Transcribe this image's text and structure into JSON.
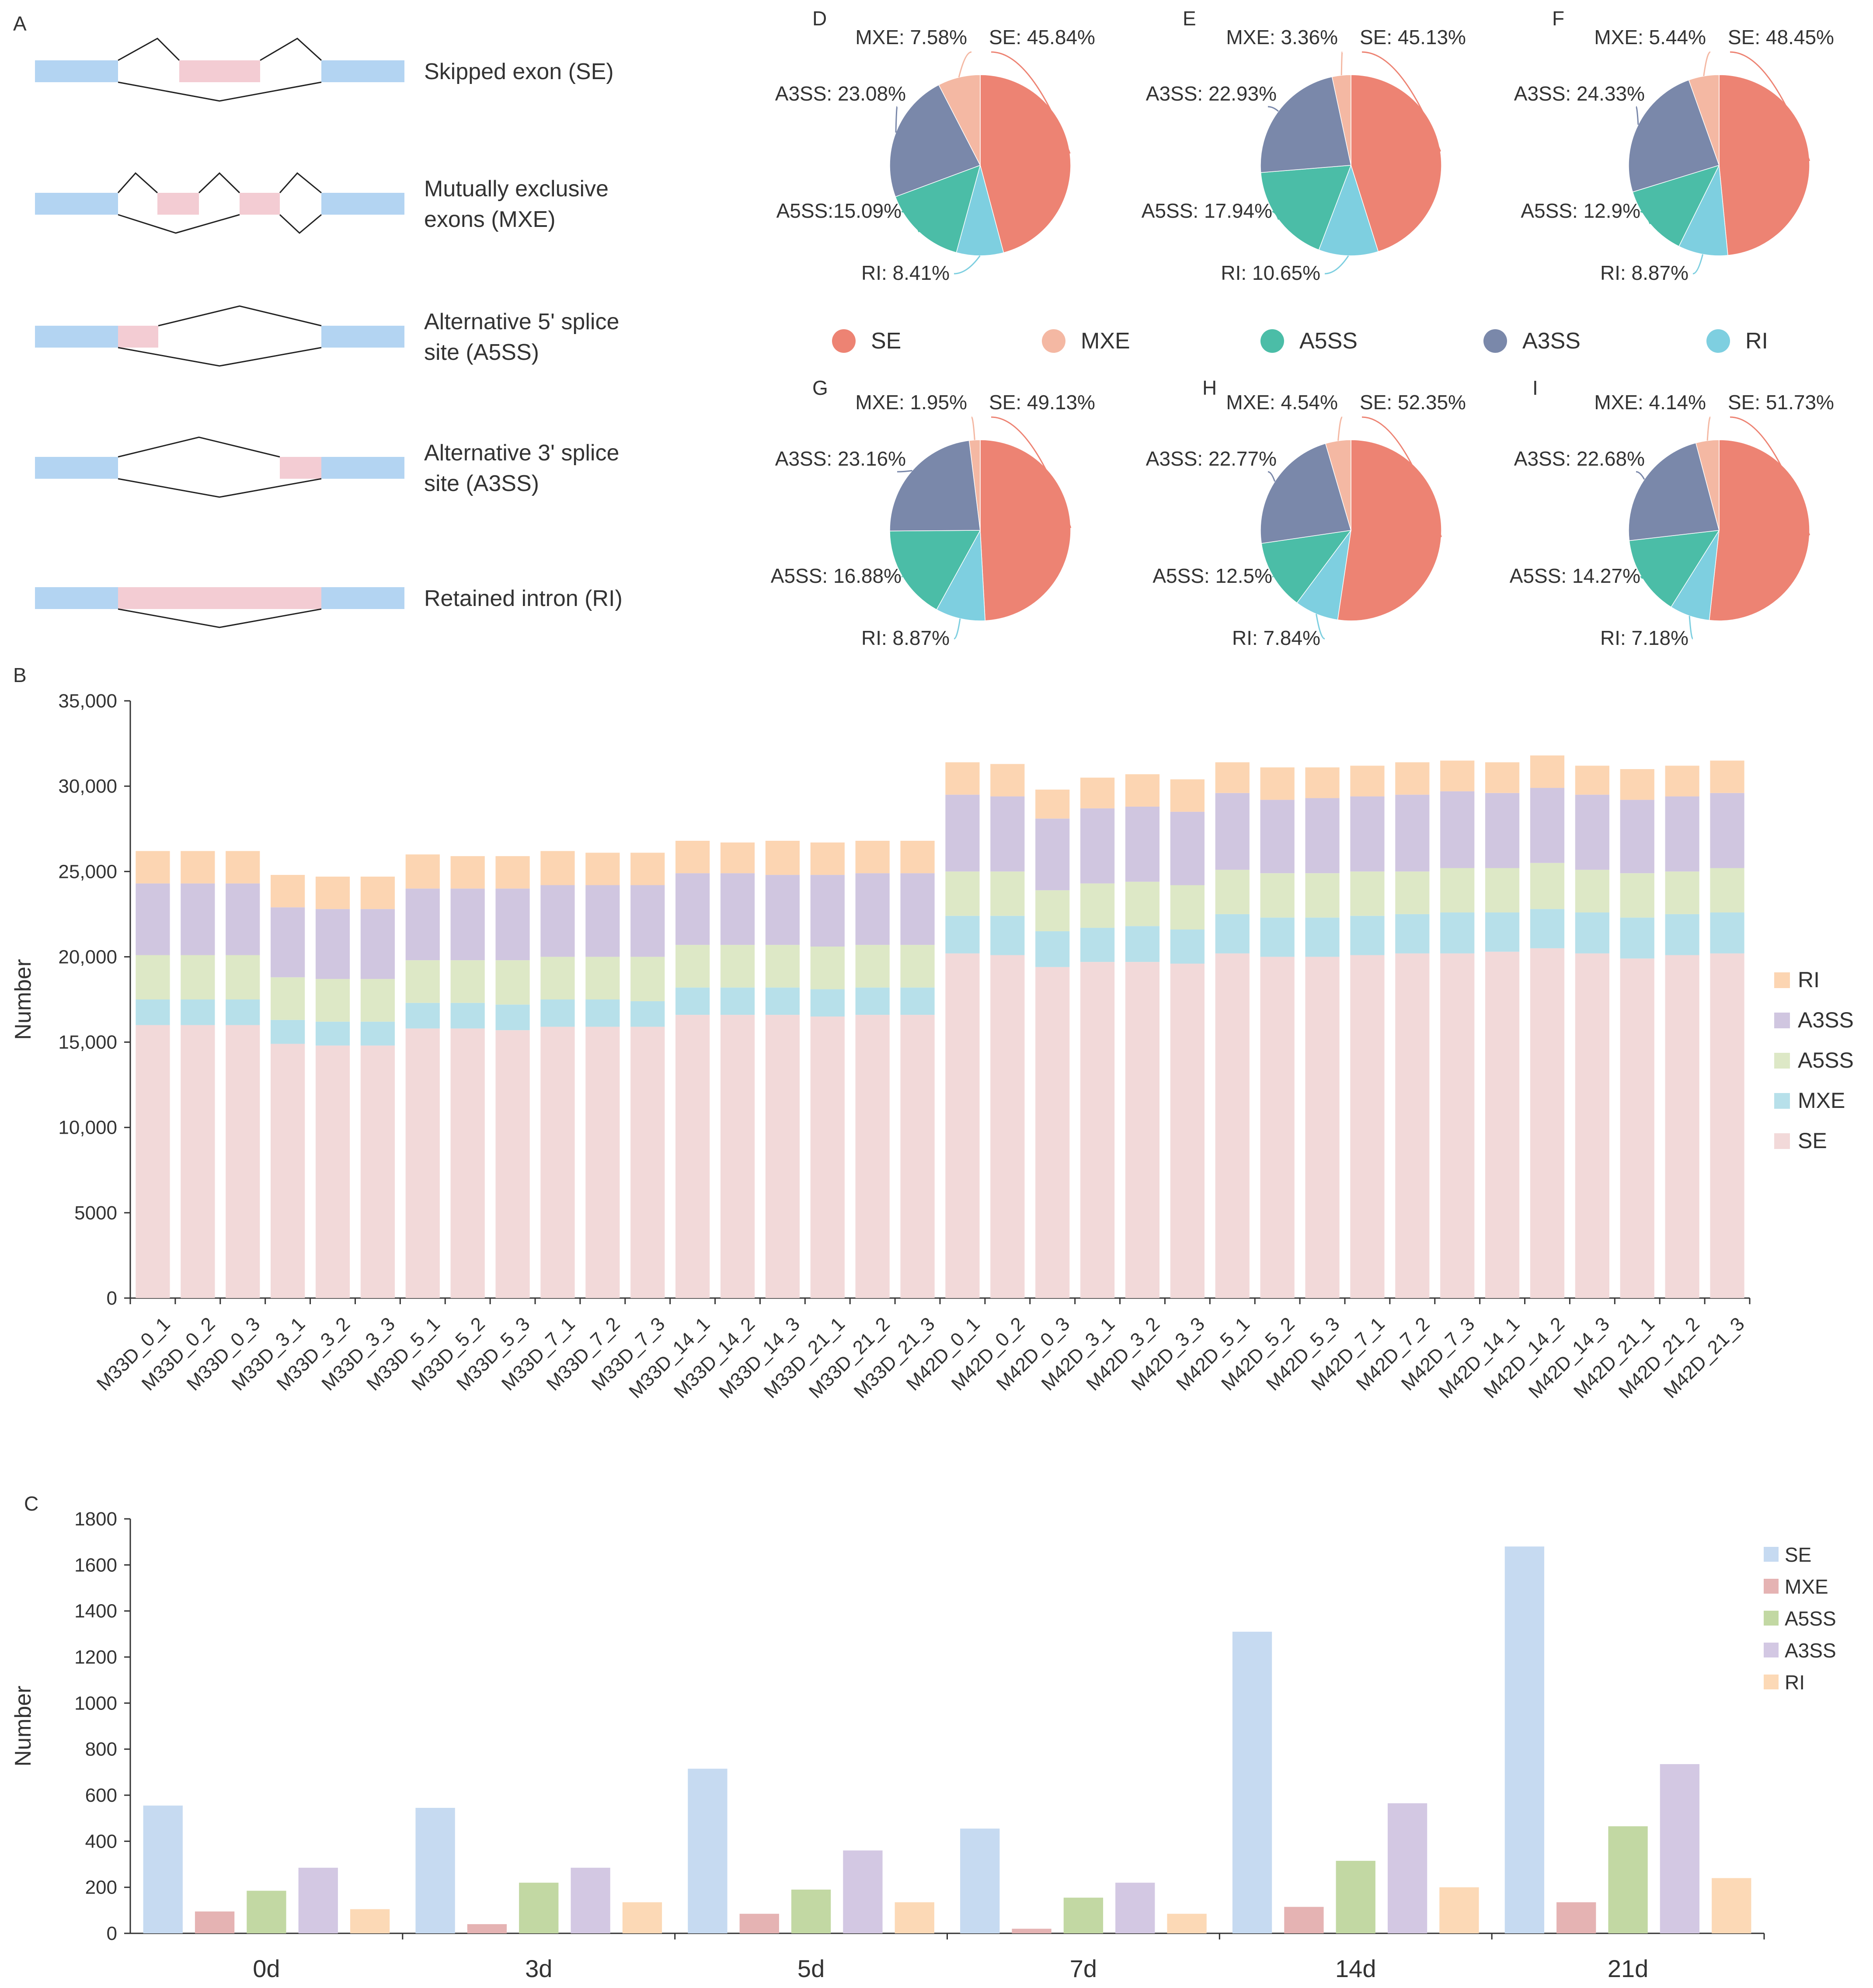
{
  "panel_letters": {
    "A": "A",
    "B": "B",
    "C": "C",
    "D": "D",
    "E": "E",
    "F": "F",
    "G": "G",
    "H": "H",
    "I": "I"
  },
  "colors": {
    "exon_blue": "#b3d4f2",
    "exon_pink": "#f3ccd3",
    "line": "#222222",
    "pie": {
      "SE": "#ed8373",
      "MXE": "#f4b8a3",
      "A5SS": "#4bbda7",
      "A3SS": "#7a88aa",
      "RI": "#7ecfe0"
    },
    "stack": {
      "SE": "#f2d9d9",
      "MXE": "#b7e0ea",
      "A5SS": "#dde8c6",
      "A3SS": "#d0c6e0",
      "RI": "#fcd5b2"
    },
    "groups": {
      "SE": "#c6daf1",
      "MXE": "#e5b3b3",
      "A5SS": "#c2d8a3",
      "A3SS": "#d3c8e3",
      "RI": "#fcd9b6"
    }
  },
  "panel_a": {
    "events": [
      {
        "id": "se",
        "lines": [
          "Skipped exon (SE)"
        ]
      },
      {
        "id": "mxe",
        "lines": [
          "Mutually exclusive",
          "exons (MXE)"
        ]
      },
      {
        "id": "a5ss",
        "lines": [
          "Alternative 5' splice",
          "site (A5SS)"
        ]
      },
      {
        "id": "a3ss",
        "lines": [
          "Alternative 3' splice",
          "site (A3SS)"
        ]
      },
      {
        "id": "ri",
        "lines": [
          "Retained intron (RI)"
        ]
      }
    ]
  },
  "pie_legend": [
    "SE",
    "MXE",
    "A5SS",
    "A3SS",
    "RI"
  ],
  "chart_data": [
    {
      "type": "pie",
      "panel": "D",
      "categories": [
        "SE",
        "RI",
        "A5SS",
        "A3SS",
        "MXE"
      ],
      "values": [
        45.84,
        8.41,
        15.09,
        23.08,
        7.58
      ],
      "labels": {
        "SE": "SE: 45.84%",
        "MXE": "MXE: 7.58%",
        "A3SS": "A3SS: 23.08%",
        "A5SS": "A5SS:15.09%",
        "RI": "RI: 8.41%"
      }
    },
    {
      "type": "pie",
      "panel": "E",
      "categories": [
        "SE",
        "RI",
        "A5SS",
        "A3SS",
        "MXE"
      ],
      "values": [
        45.13,
        10.65,
        17.94,
        22.93,
        3.36
      ],
      "labels": {
        "SE": "SE: 45.13%",
        "MXE": "MXE: 3.36%",
        "A3SS": "A3SS: 22.93%",
        "A5SS": "A5SS: 17.94%",
        "RI": "RI: 10.65%"
      }
    },
    {
      "type": "pie",
      "panel": "F",
      "categories": [
        "SE",
        "RI",
        "A5SS",
        "A3SS",
        "MXE"
      ],
      "values": [
        48.45,
        8.87,
        12.9,
        24.33,
        5.44
      ],
      "labels": {
        "SE": "SE: 48.45%",
        "MXE": "MXE: 5.44%",
        "A3SS": "A3SS: 24.33%",
        "A5SS": "A5SS: 12.9%",
        "RI": "RI: 8.87%"
      }
    },
    {
      "type": "pie",
      "panel": "G",
      "categories": [
        "SE",
        "RI",
        "A5SS",
        "A3SS",
        "MXE"
      ],
      "values": [
        49.13,
        8.87,
        16.88,
        23.16,
        1.95
      ],
      "labels": {
        "SE": "SE: 49.13%",
        "MXE": "MXE: 1.95%",
        "A3SS": "A3SS: 23.16%",
        "A5SS": "A5SS: 16.88%",
        "RI": "RI: 8.87%"
      }
    },
    {
      "type": "pie",
      "panel": "H",
      "categories": [
        "SE",
        "RI",
        "A5SS",
        "A3SS",
        "MXE"
      ],
      "values": [
        52.35,
        7.84,
        12.5,
        22.77,
        4.54
      ],
      "labels": {
        "SE": "SE: 52.35%",
        "MXE": "MXE: 4.54%",
        "A3SS": "A3SS: 22.77%",
        "A5SS": "A5SS: 12.5%",
        "RI": "RI: 7.84%"
      }
    },
    {
      "type": "pie",
      "panel": "I",
      "categories": [
        "SE",
        "RI",
        "A5SS",
        "A3SS",
        "MXE"
      ],
      "values": [
        51.73,
        7.18,
        14.27,
        22.68,
        4.14
      ],
      "labels": {
        "SE": "SE: 51.73%",
        "MXE": "MXE: 4.14%",
        "A3SS": "A3SS: 22.68%",
        "A5SS": "A5SS: 14.27%",
        "RI": "RI: 7.18%"
      }
    },
    {
      "type": "stacked_bar",
      "panel": "B",
      "ylabel": "Number",
      "xlabel": "",
      "ylim": [
        0,
        35000
      ],
      "yticks": [
        0,
        5000,
        10000,
        15000,
        20000,
        25000,
        30000,
        35000
      ],
      "ytick_labels": [
        "0",
        "5000",
        "10,000",
        "15,000",
        "20,000",
        "25,000",
        "30,000",
        "35,000"
      ],
      "categories": [
        "M33D_0_1",
        "M33D_0_2",
        "M33D_0_3",
        "M33D_3_1",
        "M33D_3_2",
        "M33D_3_3",
        "M33D_5_1",
        "M33D_5_2",
        "M33D_5_3",
        "M33D_7_1",
        "M33D_7_2",
        "M33D_7_3",
        "M33D_14_1",
        "M33D_14_2",
        "M33D_14_3",
        "M33D_21_1",
        "M33D_21_2",
        "M33D_21_3",
        "M42D_0_1",
        "M42D_0_2",
        "M42D_0_3",
        "M42D_3_1",
        "M42D_3_2",
        "M42D_3_3",
        "M42D_5_1",
        "M42D_5_2",
        "M42D_5_3",
        "M42D_7_1",
        "M42D_7_2",
        "M42D_7_3",
        "M42D_14_1",
        "M42D_14_2",
        "M42D_14_3",
        "M42D_21_1",
        "M42D_21_2",
        "M42D_21_3"
      ],
      "legend": [
        "RI",
        "A3SS",
        "A5SS",
        "MXE",
        "SE"
      ],
      "series": [
        {
          "name": "SE",
          "values": [
            16000,
            16000,
            16000,
            14900,
            14800,
            14800,
            15800,
            15800,
            15700,
            15900,
            15900,
            15900,
            16600,
            16600,
            16600,
            16500,
            16600,
            16600,
            20200,
            20100,
            19400,
            19700,
            19700,
            19600,
            20200,
            20000,
            20000,
            20100,
            20200,
            20200,
            20300,
            20500,
            20200,
            19900,
            20100,
            20200
          ]
        },
        {
          "name": "MXE",
          "values": [
            1500,
            1500,
            1500,
            1400,
            1400,
            1400,
            1500,
            1500,
            1500,
            1600,
            1600,
            1500,
            1600,
            1600,
            1600,
            1600,
            1600,
            1600,
            2200,
            2300,
            2100,
            2000,
            2100,
            2000,
            2300,
            2300,
            2300,
            2300,
            2300,
            2400,
            2300,
            2300,
            2400,
            2400,
            2400,
            2400
          ]
        },
        {
          "name": "A5SS",
          "values": [
            2600,
            2600,
            2600,
            2500,
            2500,
            2500,
            2500,
            2500,
            2600,
            2500,
            2500,
            2600,
            2500,
            2500,
            2500,
            2500,
            2500,
            2500,
            2600,
            2600,
            2400,
            2600,
            2600,
            2600,
            2600,
            2600,
            2600,
            2600,
            2500,
            2600,
            2600,
            2700,
            2500,
            2600,
            2500,
            2600
          ]
        },
        {
          "name": "A3SS",
          "values": [
            4200,
            4200,
            4200,
            4100,
            4100,
            4100,
            4200,
            4200,
            4200,
            4200,
            4200,
            4200,
            4200,
            4200,
            4100,
            4200,
            4200,
            4200,
            4500,
            4400,
            4200,
            4400,
            4400,
            4300,
            4500,
            4300,
            4400,
            4400,
            4500,
            4500,
            4400,
            4400,
            4400,
            4300,
            4400,
            4400
          ]
        },
        {
          "name": "RI",
          "values": [
            1900,
            1900,
            1900,
            1900,
            1900,
            1900,
            2000,
            1900,
            1900,
            2000,
            1900,
            1900,
            1900,
            1800,
            2000,
            1900,
            1900,
            1900,
            1900,
            1900,
            1700,
            1800,
            1900,
            1900,
            1800,
            1900,
            1800,
            1800,
            1900,
            1800,
            1800,
            1900,
            1700,
            1800,
            1800,
            1900
          ]
        }
      ]
    },
    {
      "type": "bar",
      "panel": "C",
      "ylabel": "Number",
      "xlabel": "",
      "ylim": [
        0,
        1800
      ],
      "yticks": [
        0,
        200,
        400,
        600,
        800,
        1000,
        1200,
        1400,
        1600,
        1800
      ],
      "categories": [
        "0d",
        "3d",
        "5d",
        "7d",
        "14d",
        "21d"
      ],
      "legend": [
        "SE",
        "MXE",
        "A5SS",
        "A3SS",
        "RI"
      ],
      "series": [
        {
          "name": "SE",
          "values": [
            555,
            545,
            715,
            455,
            1310,
            1680
          ]
        },
        {
          "name": "MXE",
          "values": [
            95,
            40,
            85,
            20,
            115,
            135
          ]
        },
        {
          "name": "A5SS",
          "values": [
            185,
            220,
            190,
            155,
            315,
            465
          ]
        },
        {
          "name": "A3SS",
          "values": [
            285,
            285,
            360,
            220,
            565,
            735
          ]
        },
        {
          "name": "RI",
          "values": [
            105,
            135,
            135,
            85,
            200,
            240
          ]
        }
      ]
    }
  ]
}
